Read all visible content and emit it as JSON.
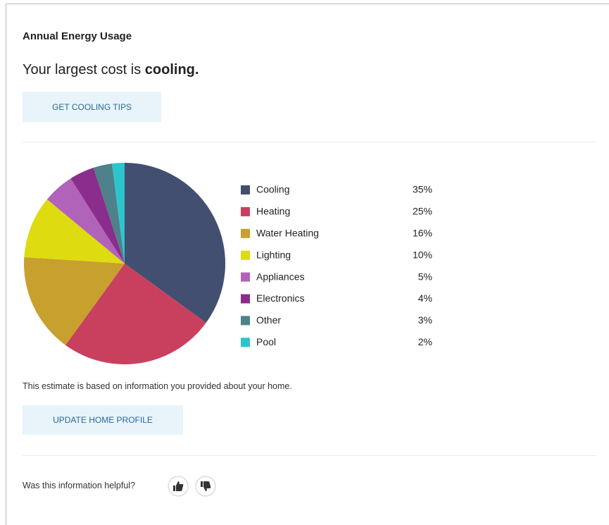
{
  "card": {
    "title": "Annual Energy Usage",
    "headline_prefix": "Your largest cost is ",
    "headline_bold": "cooling.",
    "tips_button": "GET COOLING TIPS",
    "note": "This estimate is based on information you provided about your home.",
    "profile_button": "UPDATE HOME PROFILE",
    "feedback_question": "Was this information helpful?"
  },
  "chart_data": {
    "type": "pie",
    "categories": [
      "Cooling",
      "Heating",
      "Water Heating",
      "Lighting",
      "Appliances",
      "Electronics",
      "Other",
      "Pool"
    ],
    "values": [
      35,
      25,
      16,
      10,
      5,
      4,
      3,
      2
    ],
    "value_labels": [
      "35%",
      "25%",
      "16%",
      "10%",
      "5%",
      "4%",
      "3%",
      "2%"
    ],
    "colors": [
      "#434f70",
      "#c9405f",
      "#c8a02d",
      "#dedb10",
      "#b063b9",
      "#8a2d8c",
      "#4e8189",
      "#2bc5cd"
    ]
  }
}
